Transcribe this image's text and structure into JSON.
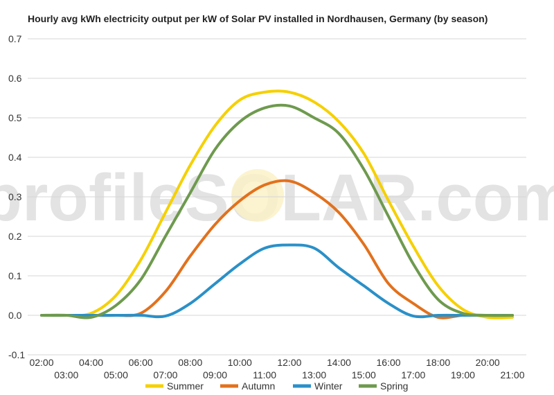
{
  "chart_data": {
    "type": "line",
    "title": "Hourly avg kWh electricity output per kW of Solar PV installed in Nordhausen, Germany (by season)",
    "xlabel": "",
    "ylabel": "",
    "ylim": [
      -0.1,
      0.7
    ],
    "yticks": [
      -0.1,
      0.0,
      0.1,
      0.2,
      0.3,
      0.4,
      0.5,
      0.6,
      0.7
    ],
    "x": [
      "02:00",
      "03:00",
      "04:00",
      "05:00",
      "06:00",
      "07:00",
      "08:00",
      "09:00",
      "10:00",
      "11:00",
      "12:00",
      "13:00",
      "14:00",
      "15:00",
      "16:00",
      "17:00",
      "18:00",
      "19:00",
      "20:00",
      "21:00"
    ],
    "grid": true,
    "legend_position": "bottom",
    "watermark": "profileSOLAR.com",
    "series": [
      {
        "name": "Summer",
        "color": "#f5d000",
        "values": [
          0.0,
          0.0,
          0.005,
          0.05,
          0.14,
          0.26,
          0.38,
          0.48,
          0.545,
          0.565,
          0.565,
          0.54,
          0.49,
          0.41,
          0.29,
          0.175,
          0.075,
          0.015,
          -0.005,
          -0.005
        ]
      },
      {
        "name": "Autumn",
        "color": "#e2711d",
        "values": [
          0.0,
          0.0,
          0.0,
          0.0,
          0.005,
          0.06,
          0.15,
          0.23,
          0.29,
          0.33,
          0.34,
          0.31,
          0.26,
          0.18,
          0.08,
          0.03,
          -0.005,
          0.0,
          0.0,
          0.0
        ]
      },
      {
        "name": "Winter",
        "color": "#2a90c8",
        "values": [
          0.0,
          0.0,
          0.0,
          0.0,
          0.0,
          -0.002,
          0.03,
          0.08,
          0.13,
          0.17,
          0.178,
          0.17,
          0.12,
          0.075,
          0.03,
          -0.002,
          0.0,
          0.0,
          0.0,
          0.0
        ]
      },
      {
        "name": "Spring",
        "color": "#6e9a4e",
        "values": [
          0.0,
          0.0,
          -0.005,
          0.025,
          0.09,
          0.2,
          0.31,
          0.42,
          0.49,
          0.525,
          0.53,
          0.5,
          0.46,
          0.37,
          0.25,
          0.13,
          0.04,
          0.005,
          0.0,
          0.0
        ]
      }
    ]
  }
}
